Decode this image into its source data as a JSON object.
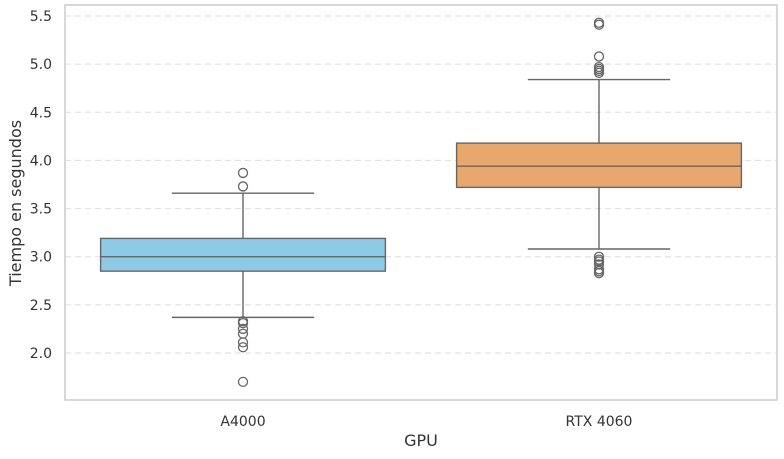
{
  "chart_data": {
    "type": "box",
    "xlabel": "GPU",
    "ylabel": "Tiempo en segundos",
    "ylim": [
      1.45,
      5.6
    ],
    "yticks": [
      2.0,
      2.5,
      3.0,
      3.5,
      4.0,
      4.5,
      5.0,
      5.5
    ],
    "ytick_labels": [
      "2.0",
      "2.5",
      "3.0",
      "3.5",
      "4.0",
      "4.5",
      "5.0",
      "5.5"
    ],
    "grid": "horizontal dashed",
    "categories": [
      "A4000",
      "RTX 4060"
    ],
    "boxes": [
      {
        "category": "A4000",
        "color": "#8ecae6",
        "whisker_low": 2.37,
        "q1": 2.85,
        "median": 3.0,
        "q3": 3.19,
        "whisker_high": 3.66,
        "outliers": [
          3.87,
          3.73,
          2.33,
          2.31,
          2.25,
          2.2,
          2.11,
          2.06,
          1.7
        ]
      },
      {
        "category": "RTX 4060",
        "color": "#e8a76c",
        "whisker_low": 3.08,
        "q1": 3.72,
        "median": 3.94,
        "q3": 4.18,
        "whisker_high": 4.84,
        "outliers": [
          5.43,
          5.41,
          5.08,
          4.97,
          4.95,
          4.93,
          4.91,
          3.0,
          2.97,
          2.95,
          2.92,
          2.87,
          2.85,
          2.83
        ]
      }
    ]
  }
}
